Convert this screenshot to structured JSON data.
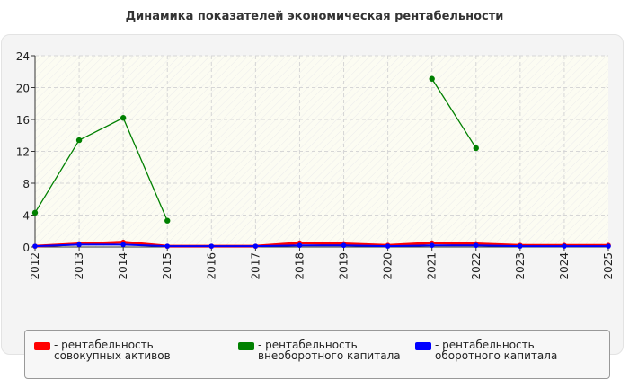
{
  "chart_data": {
    "type": "line",
    "title": "Динамика показателей экономическая рентабельности",
    "x": [
      "2012",
      "2013",
      "2014",
      "2015",
      "2016",
      "2017",
      "2018",
      "2019",
      "2020",
      "2021",
      "2022",
      "2023",
      "2024",
      "2025"
    ],
    "ylim": [
      0,
      24
    ],
    "yticks": [
      0,
      4,
      8,
      12,
      16,
      20,
      24
    ],
    "grid": true,
    "legend_position": "bottom",
    "series": [
      {
        "name": "- рентабельность совокупных активов",
        "color": "#ff0000",
        "values": [
          0.1,
          0.4,
          0.6,
          0.1,
          0.1,
          0.1,
          0.5,
          0.4,
          0.2,
          0.5,
          0.4,
          0.2,
          0.2,
          0.2
        ]
      },
      {
        "name": "- рентабельность внеоборотного капитала",
        "color": "#008000",
        "values": [
          4.3,
          13.4,
          16.2,
          3.3,
          null,
          null,
          null,
          null,
          null,
          21.1,
          12.4,
          null,
          null,
          null
        ]
      },
      {
        "name": "- рентабельность оборотного капитала",
        "color": "#0000ff",
        "values": [
          0.1,
          0.3,
          0.3,
          0.1,
          0.1,
          0.1,
          0.2,
          0.2,
          0.1,
          0.2,
          0.2,
          0.1,
          0.1,
          0.1
        ]
      }
    ]
  }
}
